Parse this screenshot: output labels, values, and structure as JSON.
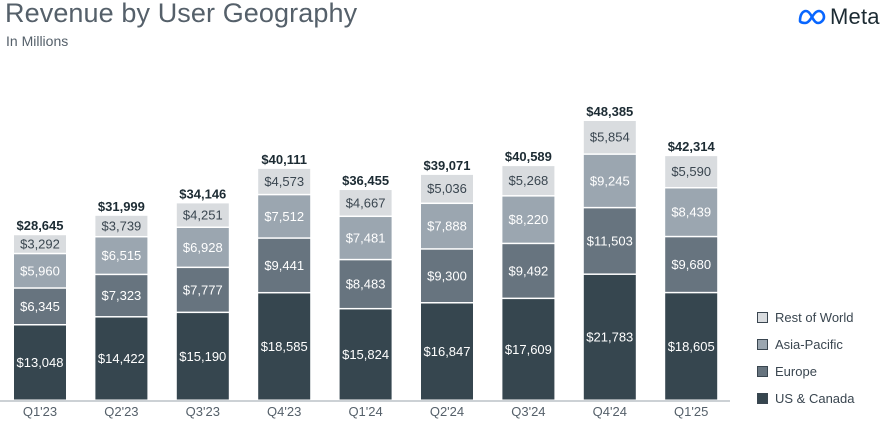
{
  "header": {
    "title": "Revenue by User Geography",
    "subtitle": "In Millions"
  },
  "brand": {
    "logo_icon": "meta-infinity-icon",
    "logo_text": "Meta",
    "logo_color": "#0866ff"
  },
  "colors": {
    "US & Canada": "#36464f",
    "Europe": "#67747f",
    "Asia-Pacific": "#9ba6b0",
    "Rest of World": "#d9dcdf",
    "light_text": "#ffffff",
    "dark_text": "#3a4650"
  },
  "chart_data": {
    "type": "bar",
    "stacked": true,
    "title": "Revenue by User Geography",
    "subtitle": "In Millions",
    "xlabel": "",
    "ylabel": "",
    "ylim": [
      0,
      50000
    ],
    "grid": false,
    "legend_position": "bottom-right",
    "categories": [
      "Q1'23",
      "Q2'23",
      "Q3'23",
      "Q4'23",
      "Q1'24",
      "Q2'24",
      "Q3'24",
      "Q4'24",
      "Q1'25"
    ],
    "series": [
      {
        "name": "US & Canada",
        "values": [
          13048,
          14422,
          15190,
          18585,
          15824,
          16847,
          17609,
          21783,
          18605
        ],
        "labels": [
          "$13,048",
          "$14,422",
          "$15,190",
          "$18,585",
          "$15,824",
          "$16,847",
          "$17,609",
          "$21,783",
          "$18,605"
        ]
      },
      {
        "name": "Europe",
        "values": [
          6345,
          7323,
          7777,
          9441,
          8483,
          9300,
          9492,
          11503,
          9680
        ],
        "labels": [
          "$6,345",
          "$7,323",
          "$7,777",
          "$9,441",
          "$8,483",
          "$9,300",
          "$9,492",
          "$11,503",
          "$9,680"
        ]
      },
      {
        "name": "Asia-Pacific",
        "values": [
          5960,
          6515,
          6928,
          7512,
          7481,
          7888,
          8220,
          9245,
          8439
        ],
        "labels": [
          "$5,960",
          "$6,515",
          "$6,928",
          "$7,512",
          "$7,481",
          "$7,888",
          "$8,220",
          "$9,245",
          "$8,439"
        ]
      },
      {
        "name": "Rest of World",
        "values": [
          3292,
          3739,
          4251,
          4573,
          4667,
          5036,
          5268,
          5854,
          5590
        ],
        "labels": [
          "$3,292",
          "$3,739",
          "$4,251",
          "$4,573",
          "$4,667",
          "$5,036",
          "$5,268",
          "$5,854",
          "$5,590"
        ]
      }
    ],
    "totals": [
      28645,
      31999,
      34146,
      40111,
      36455,
      39071,
      40589,
      48385,
      42314
    ],
    "total_labels": [
      "$28,645",
      "$31,999",
      "$34,146",
      "$40,111",
      "$36,455",
      "$39,071",
      "$40,589",
      "$48,385",
      "$42,314"
    ],
    "legend": [
      "Rest of World",
      "Asia-Pacific",
      "Europe",
      "US & Canada"
    ]
  }
}
